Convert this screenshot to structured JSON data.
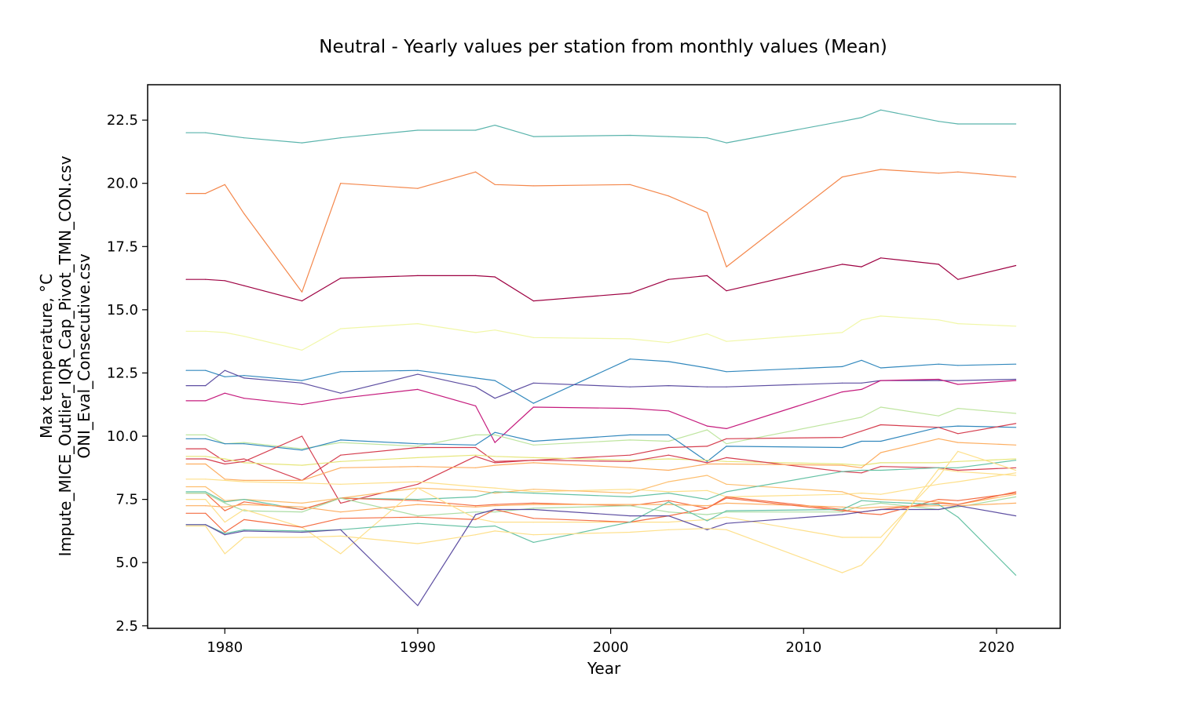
{
  "chart_data": {
    "type": "line",
    "title": "Neutral - Yearly values per station from monthly values (Mean)",
    "xlabel": "Year",
    "ylabel": [
      "Max temperature, °C",
      "Impute_MICE_Outlier_IQR_Cap_Pivot_TMN_CON.csv",
      "ONI_Eval_Consecutive.csv"
    ],
    "xlim": [
      1976,
      2023.3
    ],
    "ylim": [
      2.4,
      23.9
    ],
    "xticks": [
      1980,
      1990,
      2000,
      2010,
      2020
    ],
    "xtick_labels": [
      "1980",
      "1990",
      "2000",
      "2010",
      "2020"
    ],
    "yticks": [
      2.5,
      5.0,
      7.5,
      10.0,
      12.5,
      15.0,
      17.5,
      20.0,
      22.5
    ],
    "ytick_labels": [
      "2.5",
      "5.0",
      "7.5",
      "10.0",
      "12.5",
      "15.0",
      "17.5",
      "20.0",
      "22.5"
    ],
    "grid": false,
    "legend": false,
    "years": [
      1978,
      1979,
      1980,
      1981,
      1984,
      1986,
      1990,
      1993,
      1994,
      1996,
      2001,
      2003,
      2005,
      2006,
      2012,
      2013,
      2014,
      2017,
      2018,
      2021
    ],
    "series": [
      {
        "color": "#5ab4ac",
        "values": [
          22.0,
          22.0,
          21.9,
          21.8,
          21.6,
          21.8,
          22.1,
          22.1,
          22.3,
          21.85,
          21.9,
          21.85,
          21.8,
          21.6,
          22.45,
          22.6,
          22.9,
          22.45,
          22.35,
          22.35
        ]
      },
      {
        "color": "#f4874b",
        "values": [
          19.6,
          19.6,
          19.95,
          18.8,
          15.7,
          20.0,
          19.8,
          20.45,
          19.95,
          19.9,
          19.95,
          19.5,
          18.85,
          16.7,
          20.25,
          20.4,
          20.55,
          20.4,
          20.45,
          20.25
        ]
      },
      {
        "color": "#9e0142",
        "values": [
          16.2,
          16.2,
          16.15,
          15.95,
          15.35,
          16.25,
          16.35,
          16.35,
          16.3,
          15.35,
          15.65,
          16.2,
          16.35,
          15.75,
          16.8,
          16.7,
          17.05,
          16.8,
          16.2,
          16.75
        ]
      },
      {
        "color": "#f1f7a8",
        "values": [
          14.15,
          14.15,
          14.1,
          13.95,
          13.4,
          14.25,
          14.45,
          14.1,
          14.2,
          13.9,
          13.85,
          13.7,
          14.05,
          13.75,
          14.1,
          14.6,
          14.75,
          14.6,
          14.45,
          14.35
        ]
      },
      {
        "color": "#3288bd",
        "values": [
          12.6,
          12.6,
          12.35,
          12.4,
          12.2,
          12.55,
          12.6,
          12.3,
          12.2,
          11.3,
          13.05,
          12.95,
          12.7,
          12.55,
          12.75,
          13.0,
          12.7,
          12.85,
          12.8,
          12.85
        ]
      },
      {
        "color": "#5e4fa2",
        "values": [
          12.0,
          12.0,
          12.6,
          12.3,
          12.1,
          11.7,
          12.45,
          11.95,
          11.5,
          12.1,
          11.95,
          12.0,
          11.95,
          11.95,
          12.1,
          12.1,
          12.2,
          12.2,
          12.2,
          12.25
        ]
      },
      {
        "color": "#c51b7d",
        "values": [
          11.4,
          11.4,
          11.7,
          11.5,
          11.25,
          11.5,
          11.85,
          11.2,
          9.75,
          11.15,
          11.1,
          11.0,
          10.4,
          10.3,
          11.75,
          11.85,
          12.2,
          12.25,
          12.05,
          12.2
        ]
      },
      {
        "color": "#bfe5a0",
        "values": [
          10.05,
          10.05,
          9.7,
          9.75,
          9.5,
          9.75,
          9.6,
          10.05,
          10.05,
          9.65,
          9.85,
          9.8,
          10.25,
          9.7,
          10.6,
          10.75,
          11.15,
          10.8,
          11.1,
          10.9
        ]
      },
      {
        "color": "#3288bd",
        "values": [
          9.9,
          9.9,
          9.7,
          9.7,
          9.45,
          9.85,
          9.7,
          9.65,
          10.15,
          9.8,
          10.05,
          10.05,
          9.0,
          9.6,
          9.55,
          9.8,
          9.8,
          10.35,
          10.4,
          10.35
        ]
      },
      {
        "color": "#d53e4f",
        "values": [
          9.5,
          9.5,
          9.0,
          9.1,
          8.25,
          9.25,
          9.55,
          9.55,
          9.0,
          9.05,
          9.25,
          9.55,
          9.6,
          9.9,
          9.95,
          10.2,
          10.45,
          10.35,
          10.1,
          10.5
        ]
      },
      {
        "color": "#e6e67a",
        "values": [
          9.2,
          9.2,
          9.1,
          8.95,
          8.85,
          9.0,
          9.15,
          9.25,
          9.2,
          9.15,
          9.05,
          9.1,
          9.05,
          9.0,
          8.9,
          8.85,
          8.95,
          8.95,
          9.0,
          9.1
        ]
      },
      {
        "color": "#d53e4f",
        "values": [
          9.1,
          9.1,
          8.9,
          9.0,
          10.0,
          7.35,
          8.1,
          9.2,
          8.95,
          9.05,
          9.0,
          9.25,
          8.95,
          9.15,
          8.6,
          8.55,
          8.8,
          8.75,
          8.65,
          8.75
        ]
      },
      {
        "color": "#fdae61",
        "values": [
          8.9,
          8.9,
          8.3,
          8.25,
          8.25,
          8.75,
          8.8,
          8.75,
          8.85,
          8.95,
          8.75,
          8.65,
          8.9,
          8.9,
          8.85,
          8.75,
          9.35,
          9.9,
          9.75,
          9.65
        ]
      },
      {
        "color": "#fee08b",
        "values": [
          8.3,
          8.3,
          8.25,
          8.2,
          8.15,
          8.1,
          8.2,
          8.0,
          7.95,
          7.8,
          7.9,
          7.8,
          7.85,
          7.6,
          7.7,
          7.75,
          7.7,
          8.1,
          8.2,
          8.55
        ]
      },
      {
        "color": "#fdbf6f",
        "values": [
          8.0,
          8.0,
          7.45,
          7.5,
          7.35,
          7.55,
          7.95,
          7.85,
          7.75,
          7.9,
          7.75,
          8.2,
          8.45,
          8.1,
          7.8,
          7.55,
          7.5,
          7.4,
          7.3,
          7.7
        ]
      },
      {
        "color": "#66c2a5",
        "values": [
          7.8,
          7.8,
          7.4,
          7.5,
          7.1,
          7.55,
          7.5,
          7.6,
          7.8,
          7.75,
          7.6,
          7.75,
          7.5,
          7.8,
          8.6,
          8.65,
          8.65,
          8.75,
          8.75,
          9.05
        ]
      },
      {
        "color": "#f46d43",
        "values": [
          7.75,
          7.75,
          7.05,
          7.4,
          7.1,
          7.55,
          7.45,
          7.25,
          7.3,
          7.35,
          7.25,
          7.45,
          7.15,
          7.6,
          7.1,
          6.95,
          6.9,
          7.5,
          7.45,
          7.75
        ]
      },
      {
        "color": "#abdda4",
        "values": [
          7.75,
          7.75,
          7.35,
          7.05,
          7.0,
          7.55,
          6.85,
          7.0,
          7.0,
          7.15,
          7.25,
          7.0,
          6.9,
          7.0,
          7.0,
          7.25,
          7.35,
          7.1,
          7.2,
          7.6
        ]
      },
      {
        "color": "#fdae61",
        "values": [
          7.25,
          7.25,
          7.2,
          7.3,
          7.2,
          7.0,
          7.3,
          7.2,
          7.25,
          7.3,
          7.3,
          7.3,
          7.25,
          7.35,
          7.2,
          7.15,
          7.2,
          7.25,
          7.25,
          7.35
        ]
      },
      {
        "color": "#fee08b",
        "values": [
          7.5,
          7.5,
          6.6,
          7.1,
          6.4,
          5.35,
          7.95,
          6.75,
          6.6,
          6.6,
          6.6,
          6.6,
          6.7,
          6.8,
          6.0,
          6.0,
          6.0,
          8.4,
          9.4,
          8.65
        ]
      },
      {
        "color": "#f46d43",
        "values": [
          6.95,
          6.95,
          6.2,
          6.7,
          6.4,
          6.75,
          6.8,
          6.7,
          7.1,
          6.75,
          6.6,
          6.85,
          7.15,
          7.55,
          7.05,
          7.0,
          7.1,
          7.35,
          7.3,
          7.8
        ]
      },
      {
        "color": "#66c2a5",
        "values": [
          6.5,
          6.5,
          6.15,
          6.3,
          6.25,
          6.3,
          6.55,
          6.4,
          6.45,
          5.8,
          6.6,
          7.4,
          6.65,
          7.05,
          7.1,
          7.45,
          7.4,
          7.3,
          6.8,
          4.5
        ]
      },
      {
        "color": "#5e4fa2",
        "values": [
          6.5,
          6.5,
          6.1,
          6.25,
          6.2,
          6.3,
          3.3,
          6.9,
          7.1,
          7.1,
          6.85,
          6.85,
          6.3,
          6.55,
          6.9,
          7.0,
          7.1,
          7.1,
          7.25,
          6.85
        ]
      },
      {
        "color": "#fee08b",
        "values": [
          6.45,
          6.45,
          5.35,
          6.0,
          6.0,
          6.05,
          5.75,
          6.1,
          6.25,
          6.1,
          6.2,
          6.3,
          6.35,
          6.3,
          4.6,
          4.9,
          5.7,
          8.7,
          8.6,
          8.45
        ]
      }
    ]
  }
}
